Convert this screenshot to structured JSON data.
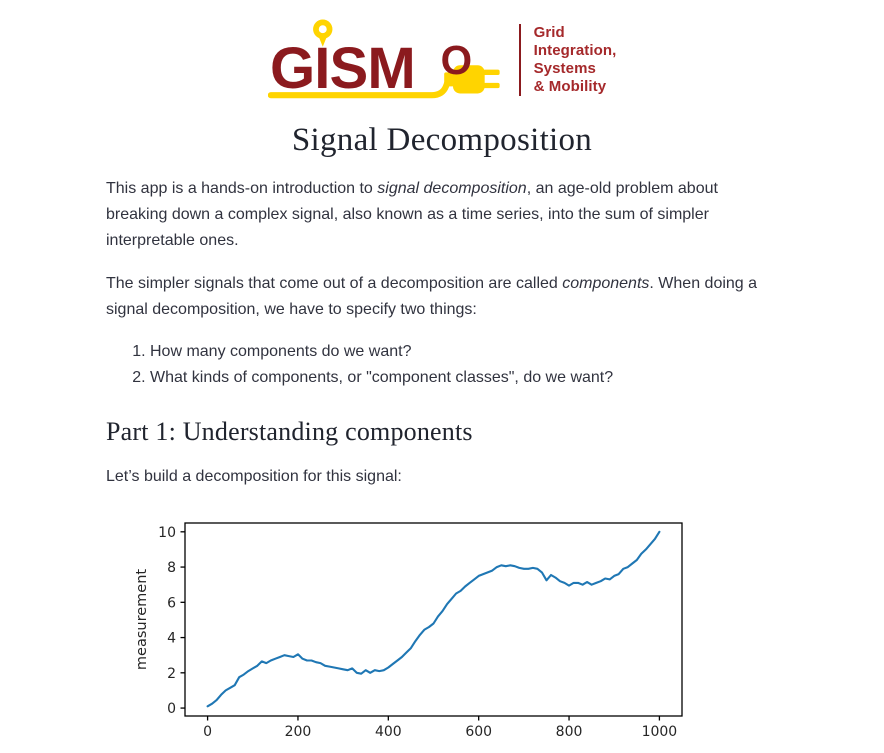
{
  "colors": {
    "maroon": "#8b1a1e",
    "gold": "#ffd400",
    "tagline_red": "#a5292b",
    "line_blue": "#1f77b4"
  },
  "logo": {
    "wordmark": "GISM",
    "wordmark_o": "O",
    "tagline_lines": [
      "Grid",
      "Integration,",
      "Systems",
      "& Mobility"
    ]
  },
  "title": "Signal Decomposition",
  "intro": {
    "p1_parts": [
      "This app is a hands-on introduction to ",
      "signal decomposition",
      ", an age-old problem about breaking down a complex signal, also known as a time series, into the sum of simpler interpretable ones."
    ],
    "p2_parts": [
      "The simpler signals that come out of a decomposition are called ",
      "components",
      ". When doing a signal decomposition, we have to specify two things:"
    ],
    "list_items": [
      "How many components do we want?",
      "What kinds of components, or \"component classes\", do we want?"
    ]
  },
  "part1": {
    "heading": "Part 1: Understanding components",
    "lead": "Let’s build a decomposition for this signal:"
  },
  "chart_data": {
    "type": "line",
    "title": "",
    "xlabel": "",
    "ylabel": "measurement",
    "xticks": [
      0,
      200,
      400,
      600,
      800,
      1000
    ],
    "yticks": [
      0,
      2,
      4,
      6,
      8,
      10
    ],
    "xlim": [
      -50,
      1050
    ],
    "ylim": [
      -0.45,
      10.5
    ],
    "grid": false,
    "legend": "none",
    "line_color": "#1f77b4",
    "x": [
      0,
      10,
      20,
      30,
      40,
      50,
      60,
      70,
      80,
      90,
      100,
      110,
      120,
      130,
      140,
      150,
      160,
      170,
      180,
      190,
      200,
      210,
      220,
      230,
      240,
      250,
      260,
      270,
      280,
      290,
      300,
      310,
      320,
      330,
      340,
      350,
      360,
      370,
      380,
      390,
      400,
      410,
      420,
      430,
      440,
      450,
      460,
      470,
      480,
      490,
      500,
      510,
      520,
      530,
      540,
      550,
      560,
      570,
      580,
      590,
      600,
      610,
      620,
      630,
      640,
      650,
      660,
      670,
      680,
      690,
      700,
      710,
      720,
      730,
      740,
      750,
      760,
      770,
      780,
      790,
      800,
      810,
      820,
      830,
      840,
      850,
      860,
      870,
      880,
      890,
      900,
      910,
      920,
      930,
      940,
      950,
      960,
      970,
      980,
      990,
      1000
    ],
    "y": [
      0.1,
      0.25,
      0.45,
      0.75,
      1.0,
      1.15,
      1.3,
      1.75,
      1.9,
      2.1,
      2.25,
      2.4,
      2.65,
      2.55,
      2.7,
      2.8,
      2.9,
      3.0,
      2.95,
      2.9,
      3.05,
      2.8,
      2.7,
      2.7,
      2.6,
      2.55,
      2.4,
      2.35,
      2.3,
      2.25,
      2.2,
      2.15,
      2.25,
      2.0,
      1.95,
      2.15,
      2.0,
      2.15,
      2.1,
      2.15,
      2.3,
      2.5,
      2.7,
      2.9,
      3.15,
      3.4,
      3.8,
      4.15,
      4.45,
      4.6,
      4.8,
      5.2,
      5.5,
      5.9,
      6.2,
      6.5,
      6.65,
      6.9,
      7.1,
      7.3,
      7.5,
      7.6,
      7.7,
      7.8,
      8.0,
      8.1,
      8.05,
      8.1,
      8.05,
      7.95,
      7.9,
      7.9,
      7.95,
      7.9,
      7.7,
      7.25,
      7.55,
      7.4,
      7.2,
      7.1,
      6.95,
      7.1,
      7.1,
      7.0,
      7.15,
      7.0,
      7.1,
      7.2,
      7.35,
      7.3,
      7.5,
      7.6,
      7.9,
      8.0,
      8.2,
      8.4,
      8.75,
      9.0,
      9.3,
      9.6,
      10.0
    ]
  }
}
